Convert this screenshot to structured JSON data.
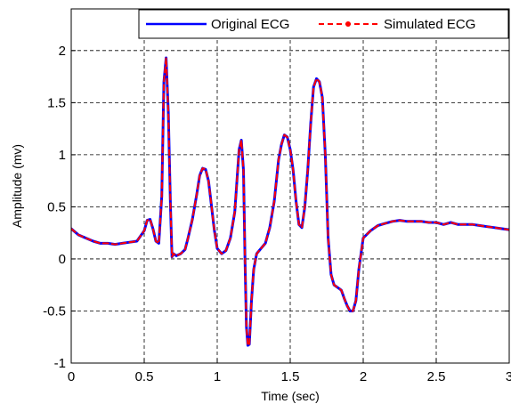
{
  "chart_data": {
    "type": "line",
    "title": "",
    "xlabel": "Time (sec)",
    "ylabel": "Amplitude (mv)",
    "xlim": [
      0,
      3
    ],
    "ylim": [
      -1,
      2.4
    ],
    "xticks": [
      0,
      0.5,
      1,
      1.5,
      2,
      2.5,
      3
    ],
    "xtick_labels": [
      "0",
      "0.5",
      "1",
      "1.5",
      "2",
      "2.5",
      "3"
    ],
    "yticks": [
      -1,
      -0.5,
      0,
      0.5,
      1,
      1.5,
      2
    ],
    "ytick_labels": [
      "-1",
      "-0.5",
      "0",
      "0.5",
      "1",
      "1.5",
      "2"
    ],
    "grid": true,
    "legend_position": "top-right",
    "series": [
      {
        "name": "Original ECG",
        "color": "#0000ff",
        "style": "solid",
        "x": [
          0,
          0.05,
          0.1,
          0.15,
          0.2,
          0.25,
          0.3,
          0.35,
          0.4,
          0.45,
          0.5,
          0.52,
          0.54,
          0.56,
          0.58,
          0.6,
          0.62,
          0.635,
          0.65,
          0.665,
          0.68,
          0.69,
          0.7,
          0.72,
          0.75,
          0.78,
          0.8,
          0.83,
          0.86,
          0.88,
          0.9,
          0.92,
          0.94,
          0.96,
          0.98,
          1.0,
          1.03,
          1.06,
          1.09,
          1.12,
          1.15,
          1.165,
          1.18,
          1.19,
          1.2,
          1.21,
          1.22,
          1.235,
          1.25,
          1.27,
          1.3,
          1.33,
          1.36,
          1.39,
          1.42,
          1.44,
          1.46,
          1.48,
          1.5,
          1.52,
          1.54,
          1.56,
          1.58,
          1.6,
          1.62,
          1.64,
          1.66,
          1.68,
          1.7,
          1.72,
          1.74,
          1.76,
          1.78,
          1.8,
          1.83,
          1.85,
          1.87,
          1.89,
          1.91,
          1.93,
          1.95,
          1.97,
          2.0,
          2.05,
          2.1,
          2.15,
          2.2,
          2.25,
          2.3,
          2.35,
          2.4,
          2.45,
          2.5,
          2.55,
          2.6,
          2.65,
          2.7,
          2.75,
          2.8,
          2.85,
          2.9,
          2.95,
          3.0
        ],
        "y": [
          0.29,
          0.23,
          0.2,
          0.17,
          0.15,
          0.15,
          0.14,
          0.15,
          0.16,
          0.17,
          0.27,
          0.37,
          0.38,
          0.29,
          0.17,
          0.15,
          0.6,
          1.7,
          1.93,
          1.4,
          0.5,
          0.02,
          0.05,
          0.03,
          0.05,
          0.09,
          0.2,
          0.38,
          0.62,
          0.8,
          0.87,
          0.86,
          0.75,
          0.52,
          0.28,
          0.1,
          0.05,
          0.08,
          0.2,
          0.45,
          1.05,
          1.14,
          0.85,
          0.0,
          -0.65,
          -0.83,
          -0.82,
          -0.4,
          -0.1,
          0.05,
          0.1,
          0.15,
          0.3,
          0.55,
          0.95,
          1.1,
          1.19,
          1.17,
          1.05,
          0.85,
          0.55,
          0.33,
          0.3,
          0.5,
          0.85,
          1.3,
          1.65,
          1.73,
          1.7,
          1.55,
          1.0,
          0.2,
          -0.15,
          -0.25,
          -0.28,
          -0.3,
          -0.38,
          -0.45,
          -0.5,
          -0.5,
          -0.4,
          -0.1,
          0.2,
          0.27,
          0.32,
          0.34,
          0.36,
          0.37,
          0.36,
          0.36,
          0.36,
          0.35,
          0.35,
          0.33,
          0.35,
          0.33,
          0.33,
          0.33,
          0.32,
          0.31,
          0.3,
          0.29,
          0.28
        ]
      },
      {
        "name": "Simulated ECG",
        "color": "#ff0000",
        "style": "dashed",
        "x": [
          0,
          0.05,
          0.1,
          0.15,
          0.2,
          0.25,
          0.3,
          0.35,
          0.4,
          0.45,
          0.5,
          0.52,
          0.54,
          0.56,
          0.58,
          0.6,
          0.62,
          0.635,
          0.65,
          0.665,
          0.68,
          0.69,
          0.7,
          0.72,
          0.75,
          0.78,
          0.8,
          0.83,
          0.86,
          0.88,
          0.9,
          0.92,
          0.94,
          0.96,
          0.98,
          1.0,
          1.03,
          1.06,
          1.09,
          1.12,
          1.15,
          1.165,
          1.18,
          1.19,
          1.2,
          1.21,
          1.22,
          1.235,
          1.25,
          1.27,
          1.3,
          1.33,
          1.36,
          1.39,
          1.42,
          1.44,
          1.46,
          1.48,
          1.5,
          1.52,
          1.54,
          1.56,
          1.58,
          1.6,
          1.62,
          1.64,
          1.66,
          1.68,
          1.7,
          1.72,
          1.74,
          1.76,
          1.78,
          1.8,
          1.83,
          1.85,
          1.87,
          1.89,
          1.91,
          1.93,
          1.95,
          1.97,
          2.0,
          2.05,
          2.1,
          2.15,
          2.2,
          2.25,
          2.3,
          2.35,
          2.4,
          2.45,
          2.5,
          2.55,
          2.6,
          2.65,
          2.7,
          2.75,
          2.8,
          2.85,
          2.9,
          2.95,
          3.0
        ],
        "y": [
          0.29,
          0.23,
          0.2,
          0.17,
          0.15,
          0.15,
          0.14,
          0.15,
          0.16,
          0.17,
          0.27,
          0.37,
          0.38,
          0.29,
          0.17,
          0.15,
          0.6,
          1.7,
          1.93,
          1.4,
          0.5,
          0.02,
          0.05,
          0.03,
          0.05,
          0.09,
          0.2,
          0.38,
          0.62,
          0.8,
          0.87,
          0.86,
          0.75,
          0.52,
          0.28,
          0.1,
          0.05,
          0.08,
          0.2,
          0.45,
          1.05,
          1.14,
          0.85,
          0.0,
          -0.65,
          -0.83,
          -0.82,
          -0.4,
          -0.1,
          0.05,
          0.1,
          0.15,
          0.3,
          0.55,
          0.95,
          1.1,
          1.19,
          1.17,
          1.05,
          0.85,
          0.55,
          0.33,
          0.3,
          0.5,
          0.85,
          1.3,
          1.65,
          1.73,
          1.7,
          1.55,
          1.0,
          0.2,
          -0.15,
          -0.25,
          -0.28,
          -0.3,
          -0.38,
          -0.45,
          -0.5,
          -0.5,
          -0.4,
          -0.1,
          0.2,
          0.27,
          0.32,
          0.34,
          0.36,
          0.37,
          0.36,
          0.36,
          0.36,
          0.35,
          0.35,
          0.33,
          0.35,
          0.33,
          0.33,
          0.33,
          0.32,
          0.31,
          0.3,
          0.29,
          0.28
        ]
      }
    ]
  }
}
